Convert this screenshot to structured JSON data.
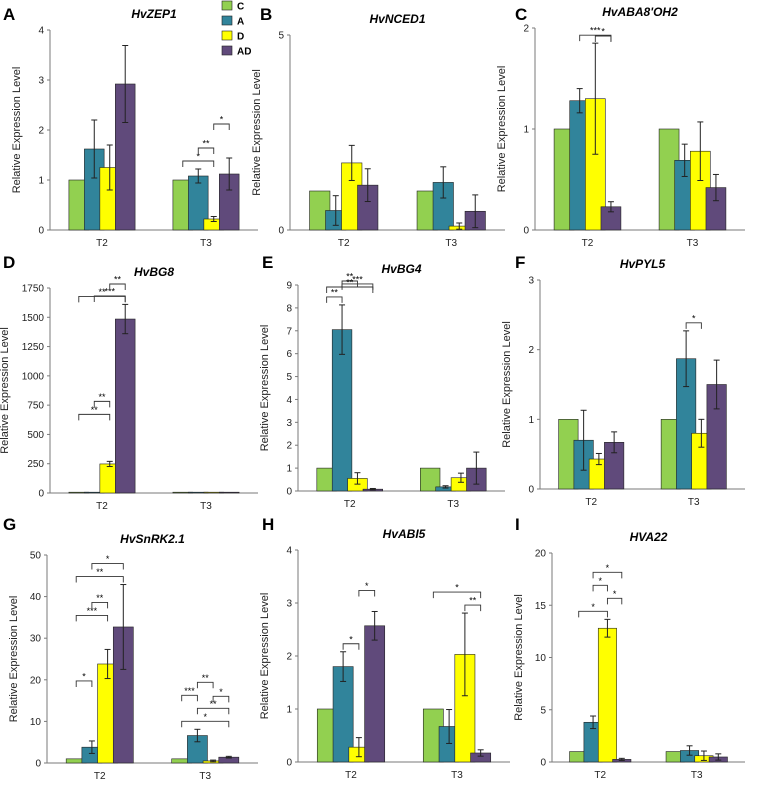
{
  "chart_data": [
    {
      "type": "bar",
      "letter": "A",
      "title": "HvZEP1",
      "ylabel": "Relative Expression Level",
      "ylim": [
        0,
        4
      ],
      "yticks": [
        0,
        1,
        2,
        3,
        4
      ],
      "categories": [
        "T2",
        "T3"
      ],
      "series": [
        {
          "name": "C",
          "values": [
            1,
            1
          ],
          "errors": [
            0,
            0
          ]
        },
        {
          "name": "A",
          "values": [
            1.62,
            1.08
          ],
          "errors": [
            0.58,
            0.14
          ]
        },
        {
          "name": "D",
          "values": [
            1.25,
            0.22
          ],
          "errors": [
            0.45,
            0.05
          ]
        },
        {
          "name": "AD",
          "values": [
            2.92,
            1.12
          ],
          "errors": [
            0.77,
            0.32
          ]
        }
      ],
      "significance": [
        {
          "group": 1,
          "from": 0,
          "to": 2,
          "label": "*"
        },
        {
          "group": 1,
          "from": 1,
          "to": 2,
          "label": "**"
        },
        {
          "group": 1,
          "from": 2,
          "to": 3,
          "label": "*"
        }
      ]
    },
    {
      "type": "bar",
      "letter": "B",
      "title": "HvNCED1",
      "ylabel": "Relative Expression Level",
      "ylim": [
        0,
        5
      ],
      "yticks": [
        0,
        5
      ],
      "categories": [
        "T2",
        "T3"
      ],
      "series": [
        {
          "name": "C",
          "values": [
            1,
            1
          ],
          "errors": [
            0,
            0
          ]
        },
        {
          "name": "A",
          "values": [
            0.5,
            1.22
          ],
          "errors": [
            0.38,
            0.4
          ]
        },
        {
          "name": "D",
          "values": [
            1.72,
            0.1
          ],
          "errors": [
            0.45,
            0.08
          ]
        },
        {
          "name": "AD",
          "values": [
            1.15,
            0.48
          ],
          "errors": [
            0.42,
            0.42
          ]
        }
      ],
      "significance": []
    },
    {
      "type": "bar",
      "letter": "C",
      "title": "HvABA8'OH2",
      "ylabel": "Relative Expression Level",
      "ylim": [
        0,
        2
      ],
      "yticks": [
        0,
        1,
        2
      ],
      "categories": [
        "T2",
        "T3"
      ],
      "series": [
        {
          "name": "C",
          "values": [
            1,
            1
          ],
          "errors": [
            0,
            0
          ]
        },
        {
          "name": "A",
          "values": [
            1.28,
            0.69
          ],
          "errors": [
            0.12,
            0.16
          ]
        },
        {
          "name": "D",
          "values": [
            1.3,
            0.78
          ],
          "errors": [
            0.55,
            0.29
          ]
        },
        {
          "name": "AD",
          "values": [
            0.23,
            0.42
          ],
          "errors": [
            0.05,
            0.13
          ]
        }
      ],
      "significance": [
        {
          "group": 0,
          "from": 1,
          "to": 3,
          "label": "***"
        },
        {
          "group": 0,
          "from": 2,
          "to": 3,
          "label": "*"
        }
      ]
    },
    {
      "type": "bar",
      "letter": "D",
      "title": "HvBG8",
      "ylabel": "Relative Expression Level",
      "ylim": [
        0,
        1750
      ],
      "yticks": [
        0,
        250,
        500,
        750,
        1000,
        1250,
        1500,
        1750
      ],
      "categories": [
        "T2",
        "T3"
      ],
      "series": [
        {
          "name": "C",
          "values": [
            1,
            1
          ],
          "errors": [
            0,
            0
          ]
        },
        {
          "name": "A",
          "values": [
            1,
            1
          ],
          "errors": [
            0,
            0
          ]
        },
        {
          "name": "D",
          "values": [
            248,
            2
          ],
          "errors": [
            22,
            0
          ]
        },
        {
          "name": "AD",
          "values": [
            1485,
            2
          ],
          "errors": [
            125,
            0
          ]
        }
      ],
      "significance": [
        {
          "group": 0,
          "from": 0,
          "to": 3,
          "label": "**"
        },
        {
          "group": 0,
          "from": 1,
          "to": 3,
          "label": "***"
        },
        {
          "group": 0,
          "from": 2,
          "to": 3,
          "label": "**"
        },
        {
          "group": 0,
          "from": 0,
          "to": 2,
          "label": "**"
        },
        {
          "group": 0,
          "from": 1,
          "to": 2,
          "label": "**"
        }
      ]
    },
    {
      "type": "bar",
      "letter": "E",
      "title": "HvBG4",
      "ylabel": "Relative Expression Level",
      "ylim": [
        0,
        9
      ],
      "yticks": [
        0,
        1,
        2,
        3,
        4,
        5,
        6,
        7,
        8,
        9
      ],
      "categories": [
        "T2",
        "T3"
      ],
      "series": [
        {
          "name": "C",
          "values": [
            1,
            1
          ],
          "errors": [
            0,
            0
          ]
        },
        {
          "name": "A",
          "values": [
            7.05,
            0.18
          ],
          "errors": [
            1.08,
            0.05
          ]
        },
        {
          "name": "D",
          "values": [
            0.55,
            0.58
          ],
          "errors": [
            0.25,
            0.2
          ]
        },
        {
          "name": "AD",
          "values": [
            0.08,
            1.0
          ],
          "errors": [
            0.03,
            0.7
          ]
        }
      ],
      "significance": [
        {
          "group": 0,
          "from": 0,
          "to": 1,
          "label": "**"
        },
        {
          "group": 0,
          "from": 1,
          "to": 3,
          "label": "***"
        },
        {
          "group": 0,
          "from": 1,
          "to": 2,
          "label": "**"
        },
        {
          "group": 0,
          "from": 0,
          "to": 3,
          "label": "**"
        }
      ]
    },
    {
      "type": "bar",
      "letter": "F",
      "title": "HvPYL5",
      "ylabel": "Relative Expression Level",
      "ylim": [
        0,
        3
      ],
      "yticks": [
        0,
        1,
        2,
        3
      ],
      "categories": [
        "T2",
        "T3"
      ],
      "series": [
        {
          "name": "C",
          "values": [
            1,
            1
          ],
          "errors": [
            0,
            0
          ]
        },
        {
          "name": "A",
          "values": [
            0.7,
            1.87
          ],
          "errors": [
            0.43,
            0.4
          ]
        },
        {
          "name": "D",
          "values": [
            0.43,
            0.8
          ],
          "errors": [
            0.08,
            0.2
          ]
        },
        {
          "name": "AD",
          "values": [
            0.67,
            1.5
          ],
          "errors": [
            0.15,
            0.35
          ]
        }
      ],
      "significance": [
        {
          "group": 1,
          "from": 1,
          "to": 2,
          "label": "*"
        }
      ]
    },
    {
      "type": "bar",
      "letter": "G",
      "title": "HvSnRK2.1",
      "ylabel": "Relative Expression Level",
      "ylim": [
        0,
        50
      ],
      "yticks": [
        0,
        10,
        20,
        30,
        40,
        50
      ],
      "categories": [
        "T2",
        "T3"
      ],
      "series": [
        {
          "name": "C",
          "values": [
            1,
            1
          ],
          "errors": [
            0,
            0
          ]
        },
        {
          "name": "A",
          "values": [
            3.8,
            6.6
          ],
          "errors": [
            1.5,
            1.5
          ]
        },
        {
          "name": "D",
          "values": [
            23.8,
            0.5
          ],
          "errors": [
            3.5,
            0.2
          ]
        },
        {
          "name": "AD",
          "values": [
            32.7,
            1.4
          ],
          "errors": [
            10.2,
            0.2
          ]
        }
      ],
      "significance": [
        {
          "group": 0,
          "from": 0,
          "to": 3,
          "label": "**"
        },
        {
          "group": 0,
          "from": 1,
          "to": 3,
          "label": "*"
        },
        {
          "group": 0,
          "from": 0,
          "to": 2,
          "label": "***"
        },
        {
          "group": 0,
          "from": 1,
          "to": 2,
          "label": "**"
        },
        {
          "group": 0,
          "from": 0,
          "to": 1,
          "label": "*"
        },
        {
          "group": 1,
          "from": 0,
          "to": 3,
          "label": "*"
        },
        {
          "group": 1,
          "from": 1,
          "to": 3,
          "label": "**"
        },
        {
          "group": 1,
          "from": 0,
          "to": 1,
          "label": "***"
        },
        {
          "group": 1,
          "from": 1,
          "to": 2,
          "label": "**"
        },
        {
          "group": 1,
          "from": 2,
          "to": 3,
          "label": "*"
        }
      ]
    },
    {
      "type": "bar",
      "letter": "H",
      "title": "HvABI5",
      "ylabel": "Relative Expression Level",
      "ylim": [
        0,
        4
      ],
      "yticks": [
        0,
        1,
        2,
        3,
        4
      ],
      "categories": [
        "T2",
        "T3"
      ],
      "series": [
        {
          "name": "C",
          "values": [
            1,
            1
          ],
          "errors": [
            0,
            0
          ]
        },
        {
          "name": "A",
          "values": [
            1.8,
            0.67
          ],
          "errors": [
            0.28,
            0.32
          ]
        },
        {
          "name": "D",
          "values": [
            0.28,
            2.03
          ],
          "errors": [
            0.18,
            0.78
          ]
        },
        {
          "name": "AD",
          "values": [
            2.57,
            0.17
          ],
          "errors": [
            0.27,
            0.06
          ]
        }
      ],
      "significance": [
        {
          "group": 0,
          "from": 1,
          "to": 2,
          "label": "*"
        },
        {
          "group": 0,
          "from": 2,
          "to": 3,
          "label": "*"
        },
        {
          "group": 1,
          "from": 2,
          "to": 3,
          "label": "**"
        },
        {
          "group": 1,
          "from": 0,
          "to": 3,
          "label": "*"
        }
      ]
    },
    {
      "type": "bar",
      "letter": "I",
      "title": "HVA22",
      "ylabel": "Relative Expression Level",
      "ylim": [
        0,
        20
      ],
      "yticks": [
        0,
        5,
        10,
        15,
        20
      ],
      "categories": [
        "T2",
        "T3"
      ],
      "series": [
        {
          "name": "C",
          "values": [
            1,
            1
          ],
          "errors": [
            0,
            0
          ]
        },
        {
          "name": "A",
          "values": [
            3.8,
            1.1
          ],
          "errors": [
            0.6,
            0.45
          ]
        },
        {
          "name": "D",
          "values": [
            12.8,
            0.6
          ],
          "errors": [
            0.85,
            0.45
          ]
        },
        {
          "name": "AD",
          "values": [
            0.25,
            0.48
          ],
          "errors": [
            0.1,
            0.3
          ]
        }
      ],
      "significance": [
        {
          "group": 0,
          "from": 0,
          "to": 2,
          "label": "*"
        },
        {
          "group": 0,
          "from": 2,
          "to": 3,
          "label": "*"
        },
        {
          "group": 0,
          "from": 1,
          "to": 2,
          "label": "*"
        },
        {
          "group": 0,
          "from": 1,
          "to": 3,
          "label": "*"
        }
      ]
    }
  ],
  "legend": [
    {
      "name": "C",
      "color": "#92d050"
    },
    {
      "name": "A",
      "color": "#31849b"
    },
    {
      "name": "D",
      "color": "#ffff00"
    },
    {
      "name": "AD",
      "color": "#604a7b"
    }
  ]
}
